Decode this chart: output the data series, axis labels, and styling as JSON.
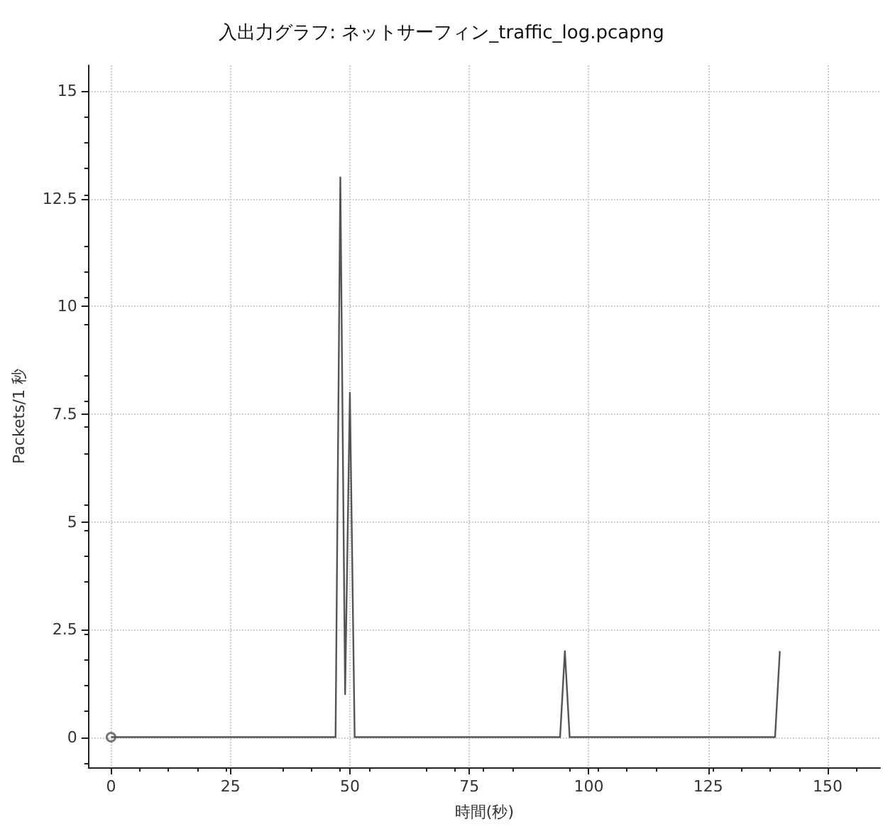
{
  "chart_data": {
    "type": "line",
    "title": "入出力グラフ: ネットサーフィン_traffic_log.pcapng",
    "xlabel": "時間(秒)",
    "ylabel": "Packets/1 秒",
    "series": [
      {
        "color": "#555555",
        "x": [
          0,
          47,
          48,
          49,
          50,
          51,
          94,
          95,
          96,
          139,
          140
        ],
        "values": [
          0,
          0,
          13,
          1,
          8,
          0,
          0,
          2,
          0,
          0,
          2
        ],
        "marker": "none"
      },
      {
        "type": "scatter",
        "color": "#555555",
        "x": [
          0
        ],
        "values": [
          0
        ],
        "marker": "circle"
      }
    ],
    "xlim": [
      -4.7,
      161
    ],
    "xticks": [
      0,
      25,
      50,
      75,
      100,
      125,
      150
    ],
    "ylim": [
      -0.7,
      15.6
    ],
    "yticks": [
      0,
      2.5,
      5,
      7.5,
      10,
      12.5,
      15
    ],
    "grid": true,
    "line_style": "solid"
  }
}
